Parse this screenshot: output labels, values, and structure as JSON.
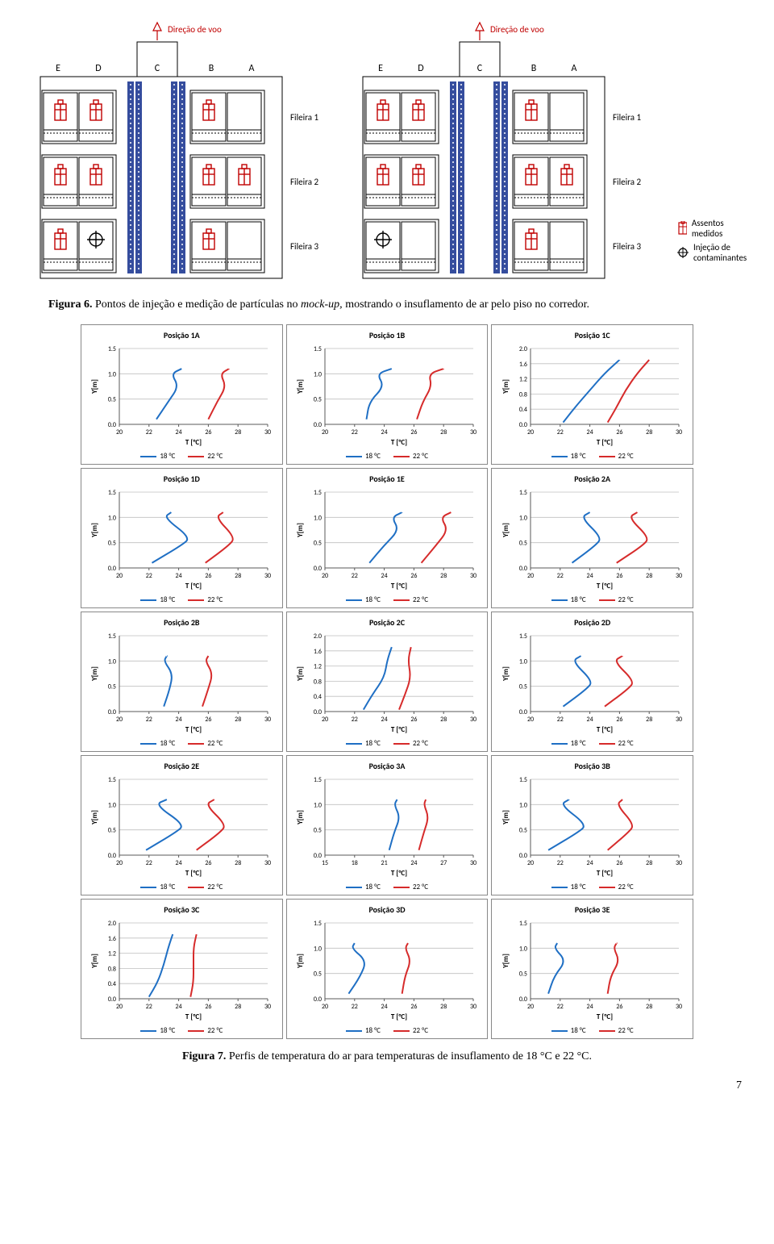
{
  "diagram": {
    "flight_dir_label": "Direção de voo",
    "flight_dir_color": "#c00000",
    "cols": [
      "E",
      "D",
      "C",
      "B",
      "A"
    ],
    "rows": [
      "Fileira 1",
      "Fileira 2",
      "Fileira 3"
    ],
    "aisle_color": "#1f3a93",
    "seat_stroke": "#000000",
    "manikin_color": "#c00000",
    "label_fontsize": 11,
    "legend_measured": "Assentos medidos",
    "legend_inject": "Injeção de\ncontaminantes",
    "left": {
      "manikins": [
        {
          "r": 0,
          "c": 0
        },
        {
          "r": 0,
          "c": 1
        },
        {
          "r": 0,
          "c": 3
        },
        {
          "r": 1,
          "c": 0
        },
        {
          "r": 1,
          "c": 1
        },
        {
          "r": 1,
          "c": 3
        },
        {
          "r": 1,
          "c": 4
        },
        {
          "r": 2,
          "c": 0
        },
        {
          "r": 2,
          "c": 3
        }
      ],
      "inject": {
        "r": 2,
        "c": 1
      }
    },
    "right": {
      "manikins": [
        {
          "r": 0,
          "c": 0
        },
        {
          "r": 0,
          "c": 1
        },
        {
          "r": 0,
          "c": 3
        },
        {
          "r": 1,
          "c": 0
        },
        {
          "r": 1,
          "c": 1
        },
        {
          "r": 1,
          "c": 3
        },
        {
          "r": 1,
          "c": 4
        },
        {
          "r": 2,
          "c": 3
        }
      ],
      "inject": {
        "r": 2,
        "c": 0
      }
    }
  },
  "fig6_caption_b": "Figura 6.",
  "fig6_caption": " Pontos de injeção e medição de partículas no ",
  "fig6_caption_i": "mock-up,",
  "fig6_caption_tail": " mostrando o insuflamento de ar pelo piso no corredor.",
  "fig7_caption_b": "Figura 7.",
  "fig7_caption": " Perfis de temperatura do ar para temperaturas de insuflamento de 18 °C e 22 °C.",
  "pagenum": "7",
  "charts": {
    "color18": "#1f6fc4",
    "color22": "#d62b2b",
    "grid_color": "#bfbfbf",
    "axis_color": "#595959",
    "title_fontsize": 10,
    "tick_fontsize": 8,
    "label_fontsize": 9,
    "xlabel": "T [°C]",
    "ylabel": "Y[m]",
    "legend_18": "18 °C",
    "legend_22": "22 °C",
    "cells": [
      {
        "title": "Posição 1A",
        "xlim": [
          20,
          30
        ],
        "xticks": [
          20,
          22,
          24,
          26,
          28,
          30
        ],
        "ylim": [
          0,
          1.5
        ],
        "yticks": [
          0,
          0.5,
          1.0,
          1.5
        ],
        "s18": [
          [
            22.5,
            0.1
          ],
          [
            23.3,
            0.45
          ],
          [
            24.0,
            0.75
          ],
          [
            23.5,
            1.0
          ],
          [
            24.2,
            1.1
          ]
        ],
        "s22": [
          [
            26.0,
            0.1
          ],
          [
            26.6,
            0.45
          ],
          [
            27.2,
            0.75
          ],
          [
            26.8,
            1.0
          ],
          [
            27.4,
            1.1
          ]
        ]
      },
      {
        "title": "Posição 1B",
        "xlim": [
          20,
          30
        ],
        "xticks": [
          20,
          22,
          24,
          26,
          28,
          30
        ],
        "ylim": [
          0,
          1.5
        ],
        "yticks": [
          0,
          0.5,
          1.0,
          1.5
        ],
        "s18": [
          [
            22.8,
            0.1
          ],
          [
            23.0,
            0.45
          ],
          [
            24.0,
            0.75
          ],
          [
            23.5,
            1.0
          ],
          [
            24.5,
            1.1
          ]
        ],
        "s22": [
          [
            26.2,
            0.1
          ],
          [
            26.6,
            0.45
          ],
          [
            27.2,
            0.75
          ],
          [
            27.0,
            1.0
          ],
          [
            28.0,
            1.1
          ]
        ]
      },
      {
        "title": "Posição 1C",
        "xlim": [
          20,
          30
        ],
        "xticks": [
          20,
          22,
          24,
          26,
          28,
          30
        ],
        "ylim": [
          0,
          2.0
        ],
        "yticks": [
          0,
          0.4,
          0.8,
          1.2,
          1.6,
          2.0
        ],
        "s18": [
          [
            22.2,
            0.05
          ],
          [
            23.0,
            0.45
          ],
          [
            24.0,
            0.9
          ],
          [
            25.0,
            1.35
          ],
          [
            26.0,
            1.7
          ]
        ],
        "s22": [
          [
            25.2,
            0.05
          ],
          [
            25.8,
            0.45
          ],
          [
            26.4,
            0.9
          ],
          [
            27.2,
            1.35
          ],
          [
            28.0,
            1.7
          ]
        ]
      },
      {
        "title": "Posição 1D",
        "xlim": [
          20,
          30
        ],
        "xticks": [
          20,
          22,
          24,
          26,
          28,
          30
        ],
        "ylim": [
          0,
          1.5
        ],
        "yticks": [
          0,
          0.5,
          1.0,
          1.5
        ],
        "s18": [
          [
            22.2,
            0.1
          ],
          [
            24.2,
            0.45
          ],
          [
            24.8,
            0.6
          ],
          [
            23.0,
            1.0
          ],
          [
            23.5,
            1.1
          ]
        ],
        "s22": [
          [
            25.8,
            0.1
          ],
          [
            27.4,
            0.45
          ],
          [
            27.8,
            0.6
          ],
          [
            26.5,
            1.0
          ],
          [
            27.0,
            1.1
          ]
        ]
      },
      {
        "title": "Posição 1E",
        "xlim": [
          20,
          30
        ],
        "xticks": [
          20,
          22,
          24,
          26,
          28,
          30
        ],
        "ylim": [
          0,
          1.5
        ],
        "yticks": [
          0,
          0.5,
          1.0,
          1.5
        ],
        "s18": [
          [
            23.0,
            0.1
          ],
          [
            24.0,
            0.45
          ],
          [
            25.0,
            0.75
          ],
          [
            24.5,
            1.0
          ],
          [
            25.2,
            1.1
          ]
        ],
        "s22": [
          [
            26.5,
            0.1
          ],
          [
            27.5,
            0.45
          ],
          [
            28.3,
            0.75
          ],
          [
            27.8,
            1.0
          ],
          [
            28.5,
            1.1
          ]
        ]
      },
      {
        "title": "Posição 2A",
        "xlim": [
          20,
          30
        ],
        "xticks": [
          20,
          22,
          24,
          26,
          28,
          30
        ],
        "ylim": [
          0,
          1.5
        ],
        "yticks": [
          0,
          0.5,
          1.0,
          1.5
        ],
        "s18": [
          [
            22.8,
            0.1
          ],
          [
            24.4,
            0.45
          ],
          [
            24.8,
            0.6
          ],
          [
            23.4,
            1.0
          ],
          [
            24.0,
            1.1
          ]
        ],
        "s22": [
          [
            25.8,
            0.1
          ],
          [
            27.6,
            0.45
          ],
          [
            28.0,
            0.6
          ],
          [
            26.6,
            1.0
          ],
          [
            27.2,
            1.1
          ]
        ]
      },
      {
        "title": "Posição 2B",
        "xlim": [
          20,
          30
        ],
        "xticks": [
          20,
          22,
          24,
          26,
          28,
          30
        ],
        "ylim": [
          0,
          1.5
        ],
        "yticks": [
          0,
          0.5,
          1.0,
          1.5
        ],
        "s18": [
          [
            23.0,
            0.1
          ],
          [
            23.4,
            0.45
          ],
          [
            23.6,
            0.75
          ],
          [
            23.0,
            1.0
          ],
          [
            23.2,
            1.1
          ]
        ],
        "s22": [
          [
            25.6,
            0.1
          ],
          [
            26.0,
            0.45
          ],
          [
            26.3,
            0.75
          ],
          [
            25.8,
            1.0
          ],
          [
            26.0,
            1.1
          ]
        ]
      },
      {
        "title": "Posição 2C",
        "xlim": [
          20,
          30
        ],
        "xticks": [
          20,
          22,
          24,
          26,
          28,
          30
        ],
        "ylim": [
          0,
          2.0
        ],
        "yticks": [
          0,
          0.4,
          0.8,
          1.2,
          1.6,
          2.0
        ],
        "s18": [
          [
            22.6,
            0.05
          ],
          [
            23.2,
            0.45
          ],
          [
            24.0,
            0.9
          ],
          [
            24.2,
            1.35
          ],
          [
            24.5,
            1.7
          ]
        ],
        "s22": [
          [
            25.0,
            0.05
          ],
          [
            25.4,
            0.45
          ],
          [
            25.8,
            0.9
          ],
          [
            25.6,
            1.35
          ],
          [
            25.8,
            1.7
          ]
        ]
      },
      {
        "title": "Posição 2D",
        "xlim": [
          20,
          30
        ],
        "xticks": [
          20,
          22,
          24,
          26,
          28,
          30
        ],
        "ylim": [
          0,
          1.5
        ],
        "yticks": [
          0,
          0.5,
          1.0,
          1.5
        ],
        "s18": [
          [
            22.2,
            0.1
          ],
          [
            23.8,
            0.45
          ],
          [
            24.2,
            0.6
          ],
          [
            22.8,
            1.0
          ],
          [
            23.4,
            1.1
          ]
        ],
        "s22": [
          [
            25.0,
            0.1
          ],
          [
            26.6,
            0.45
          ],
          [
            27.0,
            0.6
          ],
          [
            25.6,
            1.0
          ],
          [
            26.2,
            1.1
          ]
        ]
      },
      {
        "title": "Posição 2E",
        "xlim": [
          20,
          30
        ],
        "xticks": [
          20,
          22,
          24,
          26,
          28,
          30
        ],
        "ylim": [
          0,
          1.5
        ],
        "yticks": [
          0,
          0.5,
          1.0,
          1.5
        ],
        "s18": [
          [
            21.8,
            0.1
          ],
          [
            23.8,
            0.45
          ],
          [
            24.4,
            0.6
          ],
          [
            22.4,
            1.0
          ],
          [
            23.2,
            1.1
          ]
        ],
        "s22": [
          [
            25.2,
            0.1
          ],
          [
            26.8,
            0.45
          ],
          [
            27.2,
            0.6
          ],
          [
            25.8,
            1.0
          ],
          [
            26.4,
            1.1
          ]
        ]
      },
      {
        "title": "Posição 3A",
        "xlim": [
          15,
          30
        ],
        "xticks": [
          15,
          18,
          21,
          24,
          27,
          30
        ],
        "ylim": [
          0,
          1.5
        ],
        "yticks": [
          0,
          0.5,
          1.0,
          1.5
        ],
        "s18": [
          [
            21.5,
            0.1
          ],
          [
            22.0,
            0.45
          ],
          [
            22.6,
            0.75
          ],
          [
            22.0,
            1.0
          ],
          [
            22.3,
            1.1
          ]
        ],
        "s22": [
          [
            24.5,
            0.1
          ],
          [
            25.0,
            0.45
          ],
          [
            25.5,
            0.75
          ],
          [
            25.0,
            1.0
          ],
          [
            25.2,
            1.1
          ]
        ]
      },
      {
        "title": "Posição 3B",
        "xlim": [
          20,
          30
        ],
        "xticks": [
          20,
          22,
          24,
          26,
          28,
          30
        ],
        "ylim": [
          0,
          1.5
        ],
        "yticks": [
          0,
          0.5,
          1.0,
          1.5
        ],
        "s18": [
          [
            21.2,
            0.1
          ],
          [
            23.2,
            0.45
          ],
          [
            23.8,
            0.6
          ],
          [
            22.0,
            1.0
          ],
          [
            22.6,
            1.1
          ]
        ],
        "s22": [
          [
            25.2,
            0.1
          ],
          [
            26.6,
            0.45
          ],
          [
            27.0,
            0.6
          ],
          [
            25.8,
            1.0
          ],
          [
            26.2,
            1.1
          ]
        ]
      },
      {
        "title": "Posição 3C",
        "xlim": [
          20,
          30
        ],
        "xticks": [
          20,
          22,
          24,
          26,
          28,
          30
        ],
        "ylim": [
          0,
          2.0
        ],
        "yticks": [
          0,
          0.4,
          0.8,
          1.2,
          1.6,
          2.0
        ],
        "s18": [
          [
            22.0,
            0.05
          ],
          [
            22.6,
            0.45
          ],
          [
            23.0,
            0.9
          ],
          [
            23.3,
            1.35
          ],
          [
            23.6,
            1.7
          ]
        ],
        "s22": [
          [
            24.8,
            0.05
          ],
          [
            25.0,
            0.45
          ],
          [
            25.0,
            0.9
          ],
          [
            25.0,
            1.35
          ],
          [
            25.2,
            1.7
          ]
        ]
      },
      {
        "title": "Posição 3D",
        "xlim": [
          20,
          30
        ],
        "xticks": [
          20,
          22,
          24,
          26,
          28,
          30
        ],
        "ylim": [
          0,
          1.5
        ],
        "yticks": [
          0,
          0.5,
          1.0,
          1.5
        ],
        "s18": [
          [
            21.6,
            0.1
          ],
          [
            22.4,
            0.45
          ],
          [
            22.8,
            0.75
          ],
          [
            21.8,
            1.0
          ],
          [
            22.0,
            1.1
          ]
        ],
        "s22": [
          [
            25.2,
            0.1
          ],
          [
            25.4,
            0.45
          ],
          [
            25.8,
            0.75
          ],
          [
            25.4,
            1.0
          ],
          [
            25.6,
            1.1
          ]
        ]
      },
      {
        "title": "Posição 3E",
        "xlim": [
          20,
          30
        ],
        "xticks": [
          20,
          22,
          24,
          26,
          28,
          30
        ],
        "ylim": [
          0,
          1.5
        ],
        "yticks": [
          0,
          0.5,
          1.0,
          1.5
        ],
        "s18": [
          [
            21.2,
            0.1
          ],
          [
            21.6,
            0.45
          ],
          [
            22.4,
            0.75
          ],
          [
            21.6,
            1.0
          ],
          [
            21.8,
            1.1
          ]
        ],
        "s22": [
          [
            25.2,
            0.1
          ],
          [
            25.4,
            0.45
          ],
          [
            26.0,
            0.75
          ],
          [
            25.6,
            1.0
          ],
          [
            25.8,
            1.1
          ]
        ]
      }
    ]
  }
}
